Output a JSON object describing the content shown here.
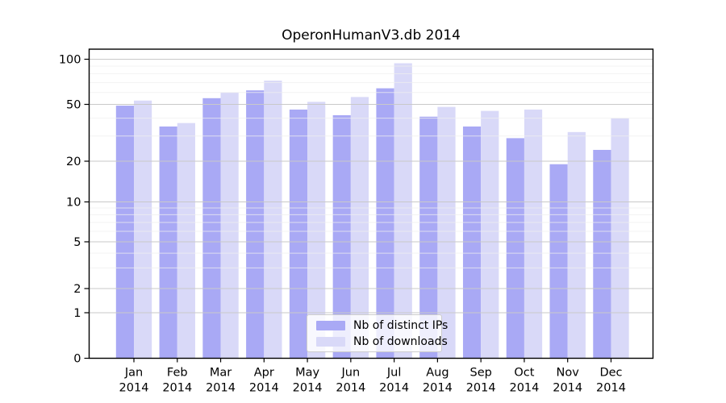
{
  "chart_data": {
    "type": "bar",
    "title": "OperonHumanV3.db 2014",
    "categories": [
      "Jan 2014",
      "Feb 2014",
      "Mar 2014",
      "Apr 2014",
      "May 2014",
      "Jun 2014",
      "Jul 2014",
      "Aug 2014",
      "Sep 2014",
      "Oct 2014",
      "Nov 2014",
      "Dec 2014"
    ],
    "series": [
      {
        "name": "Nb of distinct IPs",
        "color": "#a9a9f5",
        "values": [
          49,
          35,
          55,
          62,
          46,
          42,
          64,
          41,
          35,
          29,
          19,
          24
        ]
      },
      {
        "name": "Nb of downloads",
        "color": "#d9d9f8",
        "values": [
          53,
          37,
          60,
          72,
          52,
          56,
          94,
          48,
          45,
          46,
          32,
          40
        ]
      }
    ],
    "xlabel": "",
    "ylabel": "",
    "y_axis": {
      "scale": "log-like with linear zero segment",
      "major_ticks": [
        0,
        1,
        2,
        5,
        10,
        20,
        50,
        100
      ],
      "minor_gridlines": [
        3,
        4,
        6,
        7,
        8,
        9,
        30,
        40,
        60,
        70,
        80,
        90
      ],
      "ylim": [
        0,
        118
      ]
    },
    "grid": true,
    "legend_position": "bottom-center",
    "colors": {
      "background": "#ffffff",
      "axis_frame": "#000000",
      "major_gridline": "#c9c9c9",
      "minor_gridline": "#efefef",
      "text": "#000000"
    }
  }
}
